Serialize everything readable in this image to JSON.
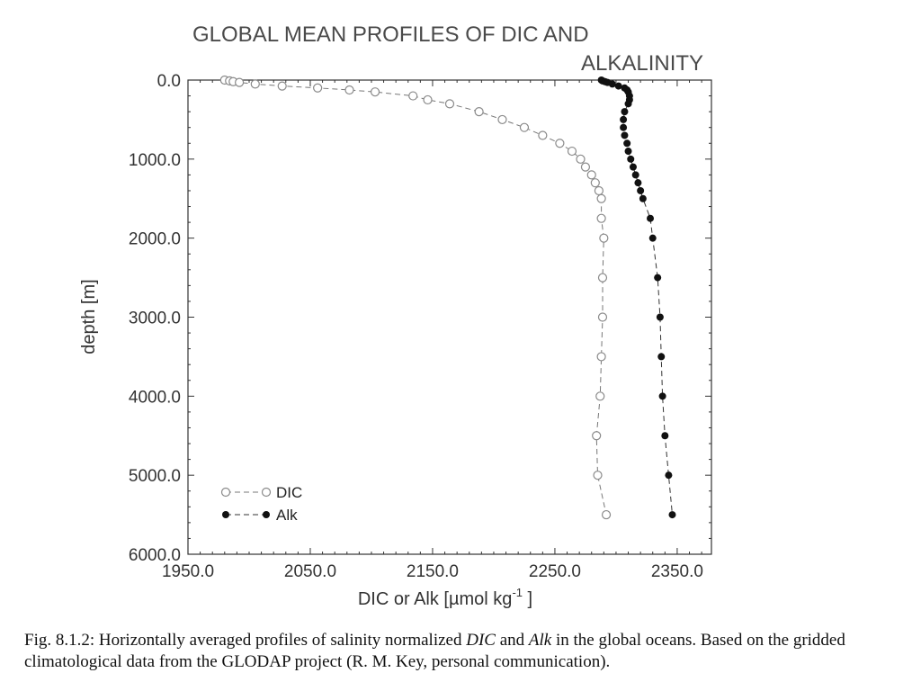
{
  "chart_data": {
    "type": "scatter",
    "title_line1": "GLOBAL MEAN PROFILES OF DIC AND",
    "title_line2": "ALKALINITY",
    "xlabel_prefix": "DIC or Alk [",
    "xlabel_unit": "µmol kg",
    "xlabel_sup": "-1",
    "xlabel_suffix": " ]",
    "ylabel": "depth [m]",
    "xlim": [
      1950,
      2378
    ],
    "ylim": [
      0,
      6000
    ],
    "y_inverted": true,
    "x_ticks": [
      1950,
      2050,
      2150,
      2250,
      2350
    ],
    "x_tick_labels": [
      "1950.0",
      "2050.0",
      "2150.0",
      "2250.0",
      "2350.0"
    ],
    "y_ticks": [
      0,
      1000,
      2000,
      3000,
      4000,
      5000,
      6000
    ],
    "y_tick_labels": [
      "0.0",
      "1000.0",
      "2000.0",
      "3000.0",
      "4000.0",
      "5000.0",
      "6000.0"
    ],
    "legend_position": "bottom-left",
    "series": [
      {
        "name": "DIC",
        "marker": "open-circle",
        "color": "#8a8a8a",
        "depth": [
          0,
          10,
          20,
          30,
          50,
          75,
          100,
          125,
          150,
          200,
          250,
          300,
          400,
          500,
          600,
          700,
          800,
          900,
          1000,
          1100,
          1200,
          1300,
          1400,
          1500,
          1750,
          2000,
          2500,
          3000,
          3500,
          4000,
          4500,
          5000,
          5500
        ],
        "value": [
          1980,
          1984,
          1987,
          1992,
          2005,
          2027,
          2056,
          2082,
          2103,
          2134,
          2146,
          2164,
          2188,
          2207,
          2225,
          2240,
          2254,
          2264,
          2271,
          2275,
          2280,
          2283,
          2286,
          2288,
          2288,
          2290,
          2289,
          2289,
          2288,
          2287,
          2284,
          2285,
          2292
        ]
      },
      {
        "name": "Alk",
        "marker": "filled-circle",
        "color": "#111111",
        "depth": [
          0,
          10,
          20,
          30,
          50,
          75,
          100,
          125,
          150,
          200,
          250,
          300,
          400,
          500,
          600,
          700,
          800,
          900,
          1000,
          1100,
          1200,
          1300,
          1400,
          1500,
          1750,
          2000,
          2500,
          3000,
          3500,
          4000,
          4500,
          5000,
          5500
        ],
        "value": [
          2288,
          2289,
          2291,
          2293,
          2297,
          2302,
          2307,
          2309,
          2310,
          2311,
          2311,
          2310,
          2307,
          2306,
          2306,
          2307,
          2309,
          2310,
          2312,
          2314,
          2316,
          2318,
          2320,
          2322,
          2328,
          2330,
          2334,
          2336,
          2337,
          2338,
          2340,
          2343,
          2346
        ]
      }
    ]
  },
  "caption": {
    "part1": "Fig. 8.1.2: Horizontally averaged profiles of salinity normalized ",
    "dic": "DIC",
    "part2": " and ",
    "alk": "Alk",
    "part3": " in the global oceans. Based on the gridded climatological data from the GLODAP project (R. M. Key, personal communication)."
  }
}
